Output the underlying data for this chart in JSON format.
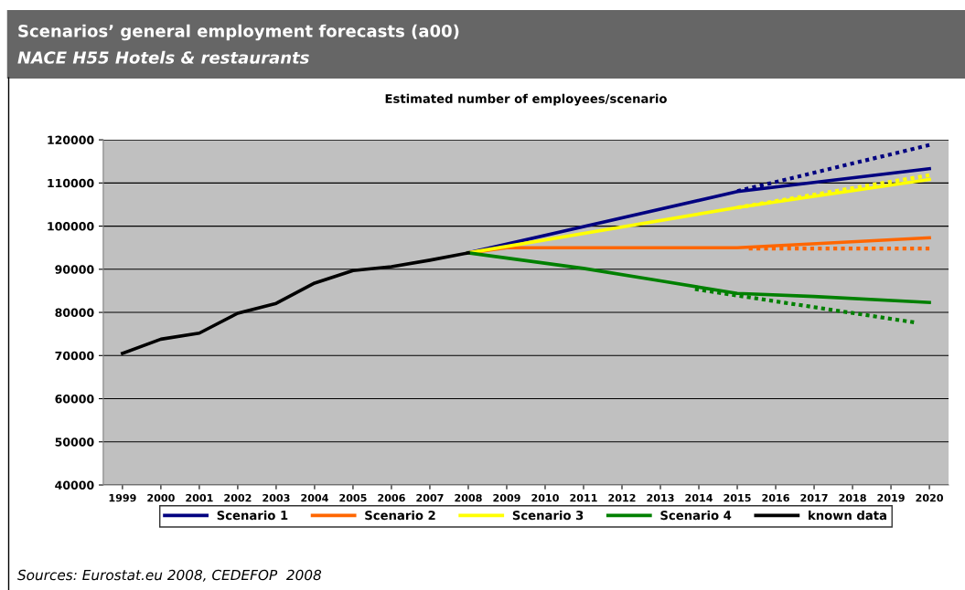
{
  "chart_data": {
    "type": "line",
    "title": "Scenarios’ general employment forecasts (a00)",
    "subtitle": "NACE H55 Hotels & restaurants",
    "annotations": [
      "Estimated number of employees/scenario",
      "Sources: Eurostat.eu 2008, CEDEFOP  2008"
    ],
    "xlim": [
      1998.5,
      2020.5
    ],
    "xticks": [
      1999,
      2000,
      2001,
      2002,
      2003,
      2004,
      2005,
      2006,
      2007,
      2008,
      2009,
      2010,
      2011,
      2012,
      2013,
      2014,
      2015,
      2016,
      2017,
      2018,
      2019,
      2020
    ],
    "ylim": [
      40000,
      120000
    ],
    "yticks": [
      40000,
      50000,
      60000,
      70000,
      80000,
      90000,
      100000,
      110000,
      120000
    ],
    "grid": "y",
    "legend": "bottom",
    "series": [
      {
        "name": "Scenario 1",
        "color": "#000080",
        "x": [
          2008,
          2015,
          2020
        ],
        "values": [
          93800,
          108000,
          113300
        ]
      },
      {
        "name": "Scenario 2",
        "color": "#ff6600",
        "x": [
          2008,
          2009,
          2015,
          2020
        ],
        "values": [
          93800,
          95000,
          95000,
          97300
        ]
      },
      {
        "name": "Scenario 3",
        "color": "#ffff00",
        "x": [
          2008,
          2015,
          2020
        ],
        "values": [
          93800,
          104300,
          110800
        ]
      },
      {
        "name": "Scenario 4",
        "color": "#008000",
        "x": [
          2008,
          2011,
          2013,
          2015,
          2017,
          2020
        ],
        "values": [
          93800,
          90200,
          87300,
          84400,
          83700,
          82300
        ]
      },
      {
        "name": "known data",
        "color": "#000000",
        "x": [
          1999,
          2000,
          2001,
          2002,
          2003,
          2004,
          2005,
          2006,
          2007,
          2008
        ],
        "values": [
          70500,
          73800,
          75200,
          79800,
          82100,
          86800,
          89700,
          90600,
          92100,
          93800
        ]
      },
      {
        "color": "#000080",
        "line_style": "dotted",
        "x": [
          2015,
          2020
        ],
        "values": [
          108100,
          118800
        ]
      },
      {
        "color": "#ffff00",
        "line_style": "dotted",
        "x": [
          2015,
          2020
        ],
        "values": [
          104300,
          111800
        ]
      },
      {
        "color": "#ff6600",
        "line_style": "dotted",
        "x": [
          2015.3,
          2020
        ],
        "values": [
          94800,
          94800
        ]
      },
      {
        "color": "#008000",
        "line_style": "dotted",
        "x": [
          2013.9,
          2019.6
        ],
        "values": [
          85400,
          77700
        ]
      }
    ]
  }
}
